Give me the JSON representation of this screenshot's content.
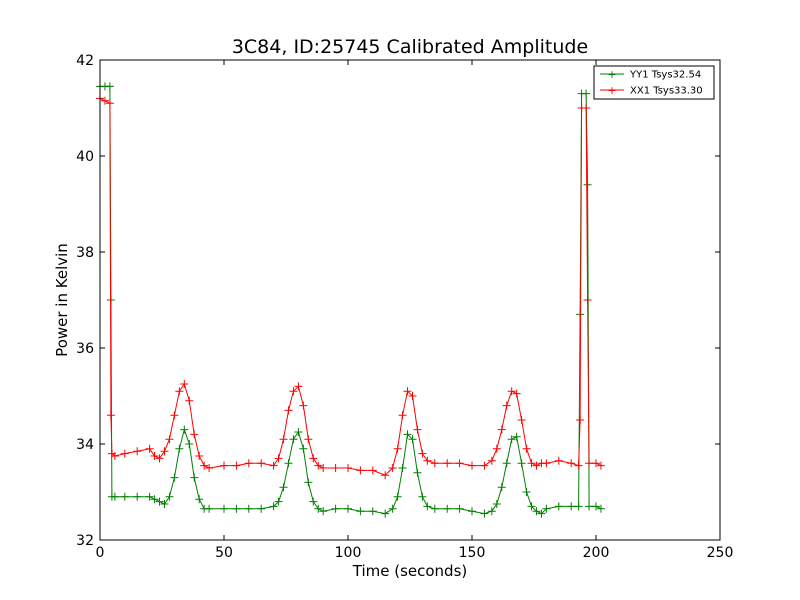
{
  "chart_data": {
    "type": "line",
    "title": "3C84, ID:25745 Calibrated Amplitude",
    "xlabel": "Time (seconds)",
    "ylabel": "Power in Kelvin",
    "xlim": [
      0,
      250
    ],
    "ylim": [
      32,
      42
    ],
    "xticks": [
      0,
      50,
      100,
      150,
      200,
      250
    ],
    "yticks": [
      32,
      34,
      36,
      38,
      40,
      42
    ],
    "grid": false,
    "legend_position": "top-right",
    "marker": "+",
    "series": [
      {
        "name": "YY1 Tsys32.54",
        "color": "#008000",
        "x": [
          0,
          2,
          4,
          4.4,
          4.8,
          6,
          10,
          15,
          20,
          22,
          24,
          26,
          28,
          30,
          32,
          34,
          36,
          38,
          40,
          42,
          44,
          50,
          55,
          60,
          65,
          70,
          72,
          74,
          76,
          78,
          80,
          82,
          84,
          86,
          88,
          90,
          95,
          100,
          105,
          110,
          115,
          118,
          120,
          122,
          124,
          126,
          128,
          130,
          132,
          135,
          140,
          145,
          150,
          155,
          158,
          160,
          162,
          164,
          166,
          168,
          170,
          172,
          174,
          176,
          178,
          180,
          185,
          190,
          193,
          193.6,
          194.2,
          196,
          196.6,
          197.2,
          200,
          202
        ],
        "y": [
          41.45,
          41.45,
          41.45,
          37.0,
          32.9,
          32.9,
          32.9,
          32.9,
          32.9,
          32.85,
          32.8,
          32.75,
          32.9,
          33.3,
          33.9,
          34.3,
          34.0,
          33.3,
          32.85,
          32.65,
          32.65,
          32.65,
          32.65,
          32.65,
          32.65,
          32.7,
          32.8,
          33.1,
          33.6,
          34.1,
          34.25,
          33.9,
          33.2,
          32.8,
          32.65,
          32.6,
          32.65,
          32.65,
          32.6,
          32.6,
          32.55,
          32.65,
          32.9,
          33.5,
          34.2,
          34.1,
          33.4,
          32.9,
          32.7,
          32.65,
          32.65,
          32.65,
          32.6,
          32.55,
          32.6,
          32.75,
          33.1,
          33.6,
          34.1,
          34.15,
          33.6,
          33.0,
          32.7,
          32.6,
          32.55,
          32.65,
          32.7,
          32.7,
          32.7,
          36.7,
          41.3,
          41.3,
          39.4,
          32.7,
          32.7,
          32.65
        ]
      },
      {
        "name": "XX1 Tsys33.30",
        "color": "#ff0000",
        "x": [
          0,
          2,
          4,
          4.4,
          4.8,
          6,
          10,
          15,
          20,
          22,
          24,
          26,
          28,
          30,
          32,
          34,
          36,
          38,
          40,
          42,
          44,
          50,
          55,
          60,
          65,
          70,
          72,
          74,
          76,
          78,
          80,
          82,
          84,
          86,
          88,
          90,
          95,
          100,
          105,
          110,
          115,
          118,
          120,
          122,
          124,
          126,
          128,
          130,
          132,
          135,
          140,
          145,
          150,
          155,
          158,
          160,
          162,
          164,
          166,
          168,
          170,
          172,
          174,
          176,
          178,
          180,
          185,
          190,
          193,
          193.6,
          194.2,
          196,
          196.6,
          197.2,
          200,
          202
        ],
        "y": [
          41.2,
          41.15,
          41.1,
          34.6,
          33.8,
          33.75,
          33.8,
          33.85,
          33.9,
          33.75,
          33.7,
          33.85,
          34.1,
          34.6,
          35.1,
          35.25,
          34.9,
          34.2,
          33.75,
          33.55,
          33.5,
          33.55,
          33.55,
          33.6,
          33.6,
          33.55,
          33.7,
          34.1,
          34.7,
          35.1,
          35.2,
          34.8,
          34.1,
          33.7,
          33.55,
          33.5,
          33.5,
          33.5,
          33.45,
          33.45,
          33.35,
          33.5,
          33.9,
          34.6,
          35.1,
          35.0,
          34.3,
          33.8,
          33.65,
          33.6,
          33.6,
          33.6,
          33.55,
          33.55,
          33.65,
          33.9,
          34.3,
          34.8,
          35.1,
          35.05,
          34.5,
          33.9,
          33.6,
          33.55,
          33.6,
          33.6,
          33.65,
          33.6,
          33.55,
          34.5,
          41.0,
          41.0,
          37.0,
          33.6,
          33.6,
          33.55
        ]
      }
    ]
  }
}
